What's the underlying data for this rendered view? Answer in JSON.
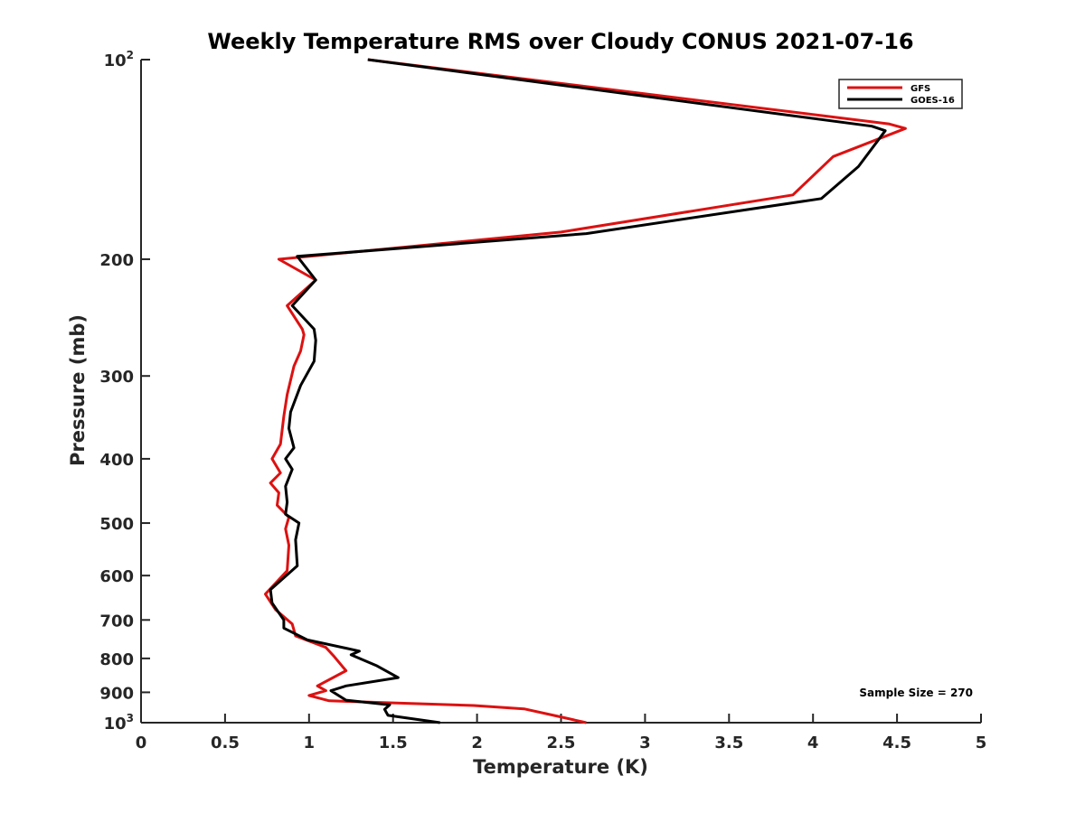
{
  "chart_data": {
    "type": "line",
    "title": "Weekly Temperature RMS over Cloudy CONUS 2021-07-16",
    "xlabel": "Temperature (K)",
    "ylabel": "Pressure (mb)",
    "xlim": [
      0,
      5
    ],
    "ylim": [
      100,
      1000
    ],
    "y_scale": "log",
    "y_reversed": true,
    "grid": false,
    "legend_position": "top-right",
    "x_ticks": [
      0,
      0.5,
      1,
      1.5,
      2,
      2.5,
      3,
      3.5,
      4,
      4.5,
      5
    ],
    "x_tick_labels": [
      "0",
      "0.5",
      "1",
      "1.5",
      "2",
      "2.5",
      "3",
      "3.5",
      "4",
      "4.5",
      "5"
    ],
    "y_ticks": [
      {
        "value": 100,
        "base": "10",
        "exp": "2"
      },
      {
        "value": 200,
        "label": "200"
      },
      {
        "value": 300,
        "label": "300"
      },
      {
        "value": 400,
        "label": "400"
      },
      {
        "value": 500,
        "label": "500"
      },
      {
        "value": 600,
        "label": "600"
      },
      {
        "value": 700,
        "label": "700"
      },
      {
        "value": 800,
        "label": "800"
      },
      {
        "value": 900,
        "label": "900"
      },
      {
        "value": 1000,
        "base": "10",
        "exp": "3"
      }
    ],
    "annotation": "Sample Size = 270",
    "series": [
      {
        "name": "GFS",
        "color": "#dd1111",
        "points": [
          [
            1.35,
            100
          ],
          [
            4.45,
            125
          ],
          [
            4.55,
            127
          ],
          [
            4.12,
            140
          ],
          [
            3.88,
            160
          ],
          [
            2.5,
            182
          ],
          [
            0.82,
            200
          ],
          [
            1.04,
            215
          ],
          [
            0.87,
            235
          ],
          [
            0.96,
            255
          ],
          [
            0.97,
            260
          ],
          [
            0.95,
            275
          ],
          [
            0.91,
            290
          ],
          [
            0.87,
            320
          ],
          [
            0.85,
            345
          ],
          [
            0.83,
            380
          ],
          [
            0.78,
            400
          ],
          [
            0.83,
            420
          ],
          [
            0.77,
            435
          ],
          [
            0.82,
            450
          ],
          [
            0.81,
            470
          ],
          [
            0.88,
            490
          ],
          [
            0.86,
            510
          ],
          [
            0.88,
            540
          ],
          [
            0.87,
            590
          ],
          [
            0.74,
            640
          ],
          [
            0.8,
            675
          ],
          [
            0.9,
            710
          ],
          [
            0.92,
            740
          ],
          [
            1.1,
            770
          ],
          [
            1.15,
            795
          ],
          [
            1.22,
            835
          ],
          [
            1.05,
            880
          ],
          [
            1.1,
            895
          ],
          [
            1.0,
            910
          ],
          [
            1.12,
            927
          ],
          [
            1.98,
            942
          ],
          [
            2.28,
            953
          ],
          [
            2.48,
            978
          ],
          [
            2.65,
            1000
          ]
        ]
      },
      {
        "name": "GOES-16",
        "color": "#000000",
        "points": [
          [
            1.35,
            100
          ],
          [
            4.35,
            126
          ],
          [
            4.43,
            128
          ],
          [
            4.27,
            145
          ],
          [
            4.05,
            162
          ],
          [
            2.65,
            183
          ],
          [
            0.93,
            198
          ],
          [
            1.04,
            215
          ],
          [
            0.9,
            235
          ],
          [
            1.03,
            255
          ],
          [
            1.04,
            265
          ],
          [
            1.03,
            285
          ],
          [
            0.95,
            310
          ],
          [
            0.89,
            340
          ],
          [
            0.88,
            360
          ],
          [
            0.91,
            385
          ],
          [
            0.86,
            400
          ],
          [
            0.9,
            415
          ],
          [
            0.86,
            440
          ],
          [
            0.87,
            465
          ],
          [
            0.86,
            485
          ],
          [
            0.94,
            500
          ],
          [
            0.92,
            530
          ],
          [
            0.93,
            580
          ],
          [
            0.77,
            630
          ],
          [
            0.78,
            660
          ],
          [
            0.85,
            700
          ],
          [
            0.85,
            720
          ],
          [
            0.99,
            750
          ],
          [
            1.3,
            780
          ],
          [
            1.25,
            790
          ],
          [
            1.4,
            820
          ],
          [
            1.53,
            855
          ],
          [
            1.22,
            880
          ],
          [
            1.13,
            895
          ],
          [
            1.22,
            925
          ],
          [
            1.48,
            940
          ],
          [
            1.45,
            955
          ],
          [
            1.47,
            975
          ],
          [
            1.78,
            1000
          ]
        ]
      }
    ]
  }
}
